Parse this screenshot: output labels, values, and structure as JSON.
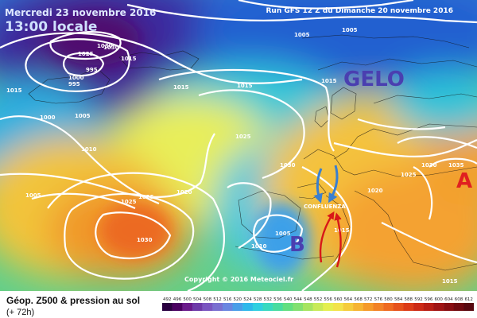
{
  "header": {
    "date": "Mercredi 23 novembre 2016",
    "time": "13:00 locale",
    "run": "Run GFS 12 Z du Dimanche 20 novembre 2016"
  },
  "annotations": {
    "gelo": "GELO",
    "anticyclone_letter": "A",
    "depression_letter": "B",
    "confluenza": "CONFLUENZA",
    "annotation_color": "#4a3fb0",
    "anticyclone_color": "#e02020",
    "cold_arrow_color": "#3a7fd0",
    "warm_arrow_color": "#d81818"
  },
  "isobars": [
    "1030",
    "1025",
    "1015",
    "995",
    "1000",
    "995",
    "1015",
    "1000",
    "1005",
    "1010",
    "1015",
    "1005",
    "1005",
    "1015",
    "1020",
    "1025",
    "1030",
    "1025",
    "1025",
    "1030",
    "1035",
    "1010",
    "1005",
    "1015",
    "1015",
    "1020",
    "1030",
    "1025",
    "1015",
    "1005",
    "1030"
  ],
  "footer": {
    "copyright": "Copyright © 2016 Meteociel.fr",
    "variable": "Géop. Z500 & pression au sol",
    "forecast_step": "(+ 72h)"
  },
  "scale": {
    "labels": [
      "492",
      "496",
      "500",
      "504",
      "508",
      "512",
      "516",
      "520",
      "524",
      "528",
      "532",
      "536",
      "540",
      "544",
      "548",
      "552",
      "556",
      "560",
      "564",
      "568",
      "572",
      "576",
      "580",
      "584",
      "588",
      "592",
      "596",
      "600",
      "604",
      "608",
      "612"
    ],
    "colors": [
      "#2a0040",
      "#4a0060",
      "#6a1a8a",
      "#6e3aa8",
      "#7a55c0",
      "#7a6fd0",
      "#6a86e0",
      "#4a9ee8",
      "#2fb8ea",
      "#30cfe0",
      "#38d9c0",
      "#48dca0",
      "#62df80",
      "#82e070",
      "#a6e460",
      "#c8ea58",
      "#e4ef50",
      "#f2e34a",
      "#f5cc3c",
      "#f6b432",
      "#f59a2a",
      "#f28226",
      "#ee6a20",
      "#e6521c",
      "#dc3c18",
      "#cc2a16",
      "#b81e14",
      "#a01414",
      "#880e12",
      "#700a10",
      "#580810"
    ]
  }
}
